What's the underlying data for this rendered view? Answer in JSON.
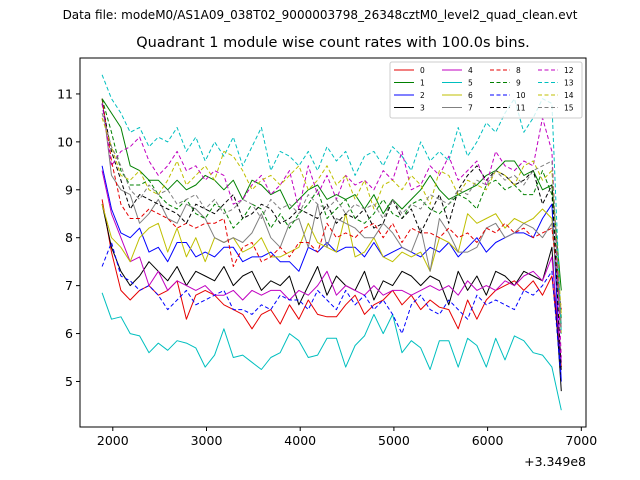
{
  "header": {
    "data_file": "Data file: modeM0/AS1A09_038T02_9000003798_26348cztM0_level2_quad_clean.evt"
  },
  "colors": [
    "#e60000",
    "#008000",
    "#0000ff",
    "#000000",
    "#c000c0",
    "#00bfbf",
    "#bfbf00",
    "#808080"
  ],
  "chart_data": {
    "type": "line",
    "title": "Quadrant 1 module wise count rates with 100.0s bins.",
    "xlabel": "",
    "ylabel": "",
    "x_offset_label": "+3.349e8",
    "xlim": [
      1650,
      7050
    ],
    "ylim": [
      4.05,
      11.75
    ],
    "x_ticks": [
      2000,
      3000,
      4000,
      5000,
      6000,
      7000
    ],
    "y_ticks": [
      5,
      6,
      7,
      8,
      9,
      10,
      11
    ],
    "legend_position": "top-right",
    "x": [
      1886,
      1986,
      2086,
      2186,
      2286,
      2386,
      2486,
      2586,
      2686,
      2786,
      2886,
      2986,
      3086,
      3186,
      3286,
      3386,
      3486,
      3586,
      3686,
      3786,
      3886,
      3986,
      4086,
      4186,
      4286,
      4386,
      4486,
      4586,
      4686,
      4786,
      4886,
      4986,
      5086,
      5186,
      5286,
      5386,
      5486,
      5586,
      5686,
      5786,
      5886,
      5986,
      6086,
      6186,
      6286,
      6386,
      6486,
      6586,
      6686,
      6786
    ],
    "series": [
      {
        "name": "0",
        "values": [
          8.8,
          7.7,
          6.9,
          6.7,
          6.9,
          7.0,
          6.8,
          6.9,
          7.1,
          6.3,
          6.8,
          6.9,
          6.8,
          6.6,
          6.5,
          6.4,
          6.1,
          6.4,
          6.5,
          6.2,
          6.6,
          6.3,
          6.7,
          6.4,
          6.35,
          6.35,
          6.6,
          6.8,
          6.4,
          6.6,
          6.7,
          6.9,
          6.6,
          6.8,
          6.5,
          6.7,
          6.55,
          6.5,
          6.1,
          6.7,
          6.3,
          6.7,
          6.9,
          7.0,
          7.1,
          6.9,
          7.1,
          6.8,
          7.2,
          5.3
        ],
        "dash": false
      },
      {
        "name": "1",
        "values": [
          10.9,
          10.6,
          10.3,
          9.5,
          9.4,
          9.2,
          9.2,
          9.0,
          9.2,
          9.0,
          9.1,
          9.3,
          9.2,
          9.0,
          9.2,
          8.8,
          9.2,
          9.1,
          8.9,
          9.0,
          8.6,
          8.8,
          9.0,
          9.1,
          8.8,
          8.9,
          8.8,
          8.9,
          8.6,
          8.9,
          8.5,
          8.8,
          8.6,
          8.8,
          9.0,
          9.3,
          9.0,
          8.8,
          8.9,
          9.0,
          9.1,
          9.3,
          9.4,
          9.6,
          9.6,
          9.3,
          9.4,
          9.0,
          9.1,
          6.9
        ],
        "dash": false
      },
      {
        "name": "2",
        "values": [
          9.5,
          8.6,
          8.1,
          8.0,
          8.2,
          7.7,
          7.8,
          7.5,
          7.9,
          7.9,
          7.6,
          7.7,
          7.6,
          7.8,
          7.8,
          7.5,
          7.6,
          7.6,
          7.7,
          7.5,
          7.5,
          7.3,
          7.8,
          7.7,
          7.9,
          7.7,
          7.8,
          7.8,
          7.6,
          7.9,
          7.6,
          7.7,
          7.8,
          7.7,
          7.6,
          7.8,
          7.7,
          7.9,
          7.6,
          7.8,
          8.0,
          7.7,
          7.9,
          8.0,
          8.1,
          8.1,
          8.0,
          8.4,
          8.7,
          5.0
        ],
        "dash": false
      },
      {
        "name": "3",
        "values": [
          8.7,
          7.8,
          7.3,
          7.0,
          7.2,
          7.5,
          7.3,
          7.1,
          7.4,
          7.0,
          7.3,
          7.2,
          7.1,
          7.4,
          7.0,
          7.2,
          7.3,
          6.9,
          7.1,
          7.0,
          7.2,
          6.6,
          7.0,
          7.4,
          6.8,
          7.2,
          7.0,
          6.9,
          7.3,
          6.7,
          7.1,
          7.0,
          7.3,
          7.2,
          7.0,
          7.2,
          7.1,
          6.6,
          7.3,
          6.9,
          7.2,
          6.8,
          7.3,
          7.2,
          7.0,
          7.3,
          7.2,
          7.1,
          7.8,
          4.8
        ],
        "dash": false
      },
      {
        "name": "4",
        "values": [
          9.4,
          8.5,
          8.0,
          7.5,
          7.6,
          7.0,
          7.3,
          6.9,
          7.1,
          7.0,
          6.9,
          7.0,
          6.8,
          6.8,
          6.9,
          6.7,
          6.9,
          6.8,
          6.9,
          6.9,
          6.7,
          6.9,
          6.8,
          7.0,
          7.3,
          6.8,
          7.0,
          6.9,
          6.8,
          7.0,
          6.8,
          6.9,
          6.9,
          6.8,
          6.9,
          7.0,
          6.9,
          7.0,
          6.8,
          7.1,
          6.9,
          7.0,
          6.9,
          7.1,
          7.0,
          7.2,
          7.3,
          7.1,
          7.6,
          5.4
        ],
        "dash": false
      },
      {
        "name": "5",
        "values": [
          6.85,
          6.3,
          6.35,
          6.0,
          5.95,
          5.6,
          5.8,
          5.65,
          5.85,
          5.8,
          5.7,
          5.3,
          5.55,
          6.1,
          5.5,
          5.55,
          5.4,
          5.25,
          5.5,
          5.6,
          6.0,
          5.85,
          5.5,
          5.55,
          5.9,
          5.9,
          5.3,
          5.75,
          5.95,
          6.4,
          6.0,
          6.4,
          5.6,
          5.85,
          5.7,
          5.25,
          5.85,
          5.85,
          5.3,
          5.9,
          5.75,
          5.3,
          5.9,
          5.45,
          5.95,
          5.85,
          5.6,
          5.55,
          5.3,
          4.4
        ],
        "dash": false
      },
      {
        "name": "6",
        "values": [
          8.7,
          8.0,
          7.8,
          7.5,
          8.0,
          8.2,
          8.3,
          7.7,
          8.2,
          7.6,
          8.0,
          7.5,
          8.0,
          7.9,
          8.0,
          7.7,
          7.8,
          8.0,
          7.6,
          7.6,
          7.7,
          7.8,
          8.3,
          7.9,
          7.8,
          7.7,
          8.5,
          7.6,
          7.7,
          8.0,
          7.6,
          7.5,
          7.7,
          7.6,
          7.7,
          7.3,
          8.0,
          7.9,
          7.7,
          8.5,
          8.3,
          8.4,
          8.5,
          8.2,
          8.4,
          8.3,
          8.4,
          8.6,
          8.4,
          6.0
        ],
        "dash": false
      },
      {
        "name": "7",
        "values": [
          10.9,
          9.3,
          9.0,
          8.9,
          8.3,
          8.5,
          8.8,
          8.4,
          8.3,
          8.7,
          8.6,
          8.4,
          8.0,
          7.9,
          8.0,
          7.9,
          8.1,
          8.5,
          8.0,
          7.8,
          8.3,
          8.4,
          7.8,
          8.7,
          7.8,
          8.4,
          8.3,
          8.2,
          8.0,
          8.0,
          8.3,
          8.1,
          7.8,
          7.7,
          8.2,
          7.3,
          8.4,
          8.1,
          7.7,
          7.7,
          7.8,
          8.2,
          8.3,
          8.0,
          8.1,
          8.3,
          8.2,
          8.0,
          8.3,
          6.2
        ],
        "dash": false
      },
      {
        "name": "8",
        "values": [
          10.9,
          9.6,
          8.7,
          8.4,
          8.4,
          8.6,
          8.5,
          8.4,
          8.2,
          8.3,
          8.2,
          8.3,
          8.3,
          8.4,
          7.4,
          7.8,
          7.9,
          7.5,
          7.6,
          7.8,
          7.6,
          7.9,
          7.9,
          7.7,
          8.3,
          8.0,
          8.1,
          8.0,
          8.2,
          8.3,
          8.0,
          8.3,
          7.9,
          8.2,
          8.1,
          8.1,
          8.0,
          8.2,
          8.0,
          8.1,
          7.9,
          8.2,
          8.1,
          8.3,
          8.1,
          8.2,
          8.0,
          8.1,
          8.2,
          6.5
        ],
        "dash": false
      },
      {
        "name": "9",
        "values": [
          10.9,
          10.2,
          9.4,
          9.1,
          9.1,
          9.2,
          8.9,
          8.7,
          8.6,
          8.8,
          8.5,
          8.4,
          8.7,
          8.6,
          8.2,
          8.4,
          8.7,
          8.6,
          8.2,
          8.5,
          8.2,
          8.5,
          8.7,
          9.0,
          8.4,
          8.6,
          8.8,
          8.4,
          8.3,
          8.5,
          8.8,
          8.5,
          8.4,
          8.7,
          8.8,
          8.6,
          8.5,
          8.7,
          8.9,
          8.8,
          8.6,
          9.1,
          9.2,
          9.0,
          9.1,
          8.9,
          8.9,
          9.4,
          8.9,
          6.3
        ],
        "dash": false
      },
      {
        "name": "10",
        "values": [
          7.4,
          7.9,
          7.2,
          7.1,
          6.9,
          7.0,
          6.8,
          6.5,
          6.7,
          6.9,
          6.6,
          6.7,
          6.8,
          6.9,
          6.5,
          6.5,
          6.4,
          6.6,
          6.5,
          6.8,
          6.7,
          6.7,
          6.5,
          6.9,
          6.7,
          6.5,
          6.9,
          6.6,
          6.8,
          6.5,
          6.7,
          6.4,
          6.0,
          6.6,
          6.8,
          6.5,
          6.4,
          6.7,
          6.5,
          6.3,
          6.8,
          6.6,
          6.7,
          6.6,
          6.5,
          6.9,
          6.8,
          7.0,
          7.3,
          5.0
        ],
        "dash": false
      },
      {
        "name": "11",
        "values": [
          10.8,
          9.8,
          9.2,
          8.6,
          8.9,
          8.8,
          8.7,
          8.6,
          8.5,
          8.3,
          8.7,
          8.6,
          8.5,
          8.7,
          8.9,
          8.4,
          8.5,
          8.7,
          8.6,
          8.3,
          8.4,
          8.6,
          8.5,
          8.4,
          8.7,
          8.3,
          8.5,
          8.4,
          8.6,
          8.2,
          8.3,
          8.8,
          8.4,
          8.6,
          8.1,
          8.5,
          8.9,
          8.3,
          9.0,
          9.3,
          9.5,
          9.2,
          9.4,
          9.3,
          9.1,
          9.2,
          9.4,
          8.7,
          9.1,
          5.2
        ],
        "dash": false
      },
      {
        "name": "12",
        "values": [
          10.8,
          9.5,
          9.8,
          9.9,
          10.1,
          9.6,
          9.3,
          9.5,
          9.8,
          9.4,
          9.5,
          9.2,
          9.4,
          9.3,
          8.7,
          8.8,
          9.1,
          9.3,
          8.9,
          9.1,
          9.4,
          8.6,
          9.5,
          8.9,
          9.3,
          8.8,
          9.3,
          9.1,
          9.2,
          9.0,
          9.4,
          9.2,
          9.8,
          9.0,
          9.1,
          9.5,
          9.3,
          9.7,
          9.2,
          9.4,
          9.6,
          9.1,
          9.8,
          9.5,
          9.4,
          9.6,
          9.5,
          10.5,
          9.8,
          5.5
        ],
        "dash": false
      },
      {
        "name": "13",
        "values": [
          11.4,
          10.9,
          10.6,
          10.2,
          10.3,
          9.9,
          10.1,
          10.0,
          10.3,
          9.8,
          10.1,
          9.6,
          10.0,
          9.7,
          10.1,
          9.5,
          9.9,
          10.3,
          9.4,
          9.8,
          9.7,
          9.5,
          9.8,
          9.4,
          9.9,
          9.6,
          9.8,
          9.3,
          9.7,
          9.8,
          9.5,
          9.9,
          9.7,
          9.4,
          10.0,
          9.6,
          9.8,
          9.6,
          10.3,
          9.7,
          10.0,
          10.4,
          10.2,
          10.6,
          10.9,
          10.2,
          10.5,
          10.9,
          10.8,
          6.0
        ],
        "dash": false
      },
      {
        "name": "14",
        "values": [
          10.5,
          9.9,
          9.3,
          9.2,
          9.4,
          9.0,
          8.9,
          9.2,
          9.6,
          9.1,
          9.3,
          9.5,
          9.2,
          9.8,
          9.7,
          9.4,
          9.0,
          9.2,
          9.3,
          9.1,
          9.3,
          9.5,
          9.0,
          9.2,
          9.5,
          9.1,
          9.3,
          8.8,
          9.2,
          8.6,
          9.1,
          9.2,
          9.0,
          9.3,
          9.1,
          8.7,
          9.4,
          9.3,
          8.9,
          9.2,
          9.1,
          9.0,
          9.4,
          9.3,
          9.1,
          9.5,
          9.6,
          9.2,
          9.4,
          6.4
        ],
        "dash": false
      },
      {
        "name": "15",
        "values": [
          10.6,
          9.9,
          9.5,
          9.0,
          8.8,
          9.1,
          8.9,
          9.0,
          8.7,
          8.8,
          8.9,
          8.6,
          8.8,
          8.5,
          8.6,
          8.8,
          8.7,
          8.4,
          8.8,
          8.6,
          8.7,
          8.5,
          8.9,
          8.7,
          8.6,
          8.8,
          8.5,
          8.7,
          8.6,
          8.7,
          8.4,
          8.8,
          8.5,
          8.7,
          8.6,
          8.9,
          8.8,
          8.7,
          9.0,
          8.9,
          9.2,
          9.1,
          9.4,
          9.2,
          9.3,
          9.1,
          9.4,
          9.5,
          9.6,
          6.1
        ],
        "dash": false
      }
    ]
  }
}
